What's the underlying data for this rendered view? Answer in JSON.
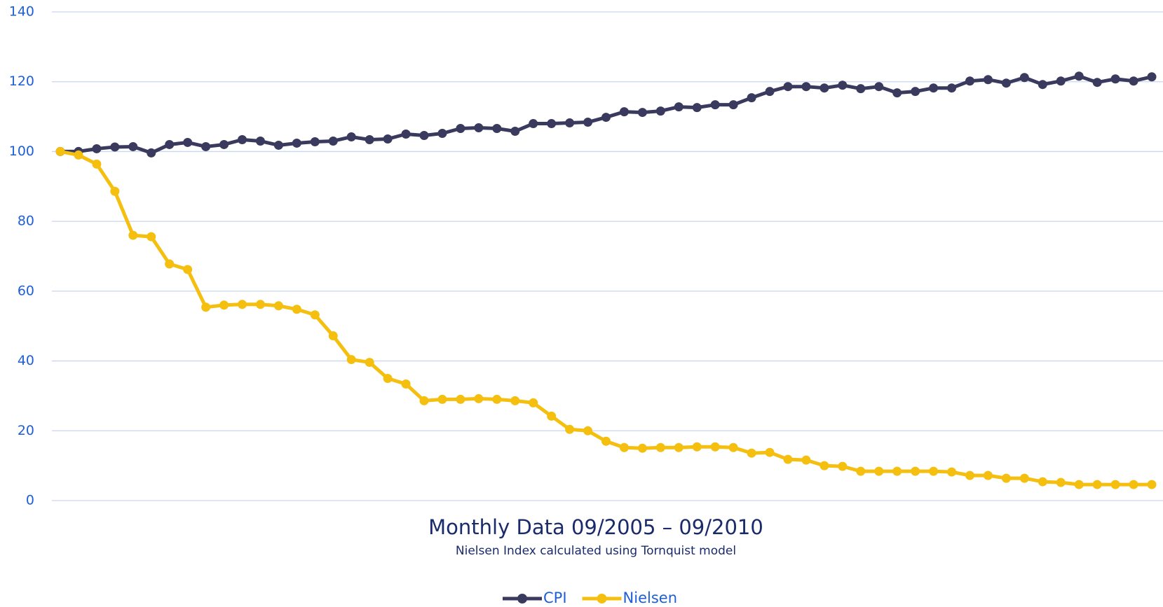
{
  "chart_data": {
    "type": "line",
    "title": "Monthly Data 09/2005 – 09/2010",
    "subtitle": "Nielsen Index calculated using Tornquist model",
    "categories": [
      null,
      null,
      null,
      null,
      null,
      null,
      null,
      null,
      null,
      null,
      null,
      null,
      null,
      null,
      null,
      null,
      null,
      null,
      null,
      null,
      null,
      null,
      null,
      null,
      null,
      null,
      null,
      null,
      null,
      null,
      null,
      null,
      null,
      null,
      null,
      null,
      null,
      null,
      null,
      null,
      null,
      null,
      null,
      null,
      null,
      null,
      null,
      null,
      null,
      null,
      null,
      null,
      null,
      null,
      null,
      null,
      null,
      null,
      null,
      null,
      null
    ],
    "series": [
      {
        "name": "CPI",
        "color": "#3a3a5e",
        "values": [
          100,
          100,
          100.8,
          101.3,
          101.4,
          99.6,
          102,
          102.6,
          101.4,
          102,
          103.4,
          103,
          101.8,
          102.4,
          102.8,
          103,
          104.2,
          103.4,
          103.6,
          105,
          104.6,
          105.2,
          106.6,
          106.8,
          106.6,
          105.8,
          108,
          108,
          108.2,
          108.4,
          109.8,
          111.4,
          111.2,
          111.6,
          112.8,
          112.6,
          113.4,
          113.4,
          115.4,
          117.2,
          118.6,
          118.6,
          118.2,
          119,
          118,
          118.6,
          116.8,
          117.2,
          118.2,
          118.2,
          120.2,
          120.6,
          119.6,
          121.2,
          119.2,
          120.2,
          121.6,
          119.8,
          120.8,
          120.2,
          121.4
        ]
      },
      {
        "name": "Nielsen",
        "color": "#f5bf10",
        "values": [
          100,
          99,
          96.4,
          88.6,
          76,
          75.6,
          67.8,
          66.2,
          55.4,
          56,
          56.2,
          56.2,
          55.8,
          54.8,
          53.2,
          47.2,
          40.4,
          39.6,
          35,
          33.4,
          28.6,
          29,
          29,
          29.2,
          29,
          28.6,
          28,
          24.2,
          20.4,
          20,
          17,
          15.2,
          15,
          15.2,
          15.2,
          15.4,
          15.4,
          15.2,
          13.6,
          13.8,
          11.8,
          11.6,
          10,
          9.8,
          8.4,
          8.4,
          8.4,
          8.4,
          8.4,
          8.2,
          7.2,
          7.2,
          6.4,
          6.4,
          5.4,
          5.2,
          4.6,
          4.6,
          4.6,
          4.6,
          4.6
        ]
      }
    ],
    "ylim": [
      0,
      140
    ],
    "yticks": [
      0,
      20,
      40,
      60,
      80,
      100,
      120,
      140
    ],
    "grid": true,
    "legend": "bottom"
  }
}
